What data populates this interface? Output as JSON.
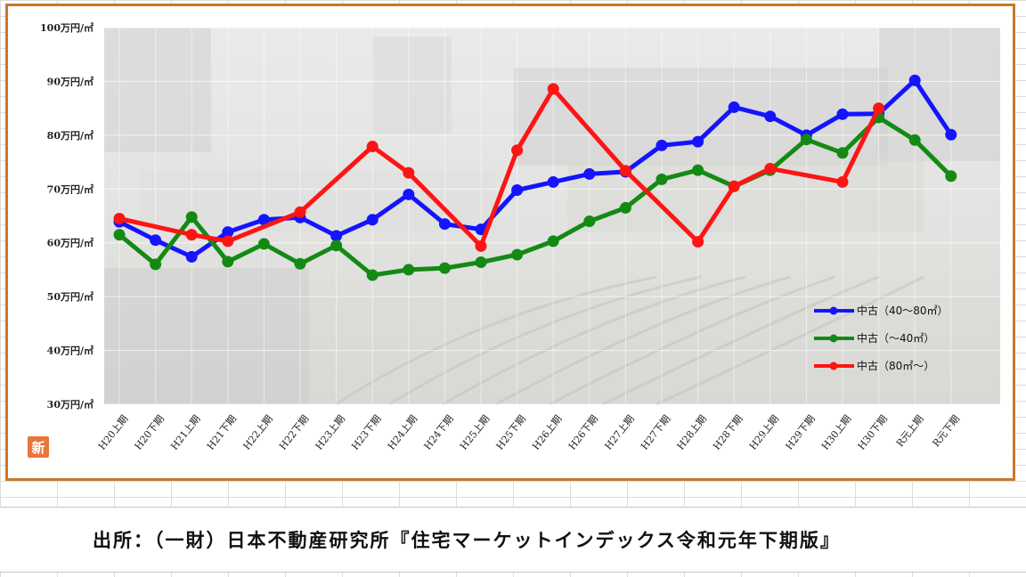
{
  "source_text": "出所：（一財）日本不動産研究所『住宅マーケットインデックス令和元年下期版』",
  "logo_text": "新",
  "chart_data": {
    "type": "line",
    "y_unit_suffix": "万円/㎡",
    "ylim": [
      30,
      100
    ],
    "y_ticks": [
      "30万円/㎡",
      "40万円/㎡",
      "50万円/㎡",
      "60万円/㎡",
      "70万円/㎡",
      "80万円/㎡",
      "90万円/㎡",
      "100万円/㎡"
    ],
    "categories": [
      "H20上期",
      "H20下期",
      "H21上期",
      "H21下期",
      "H22上期",
      "H22下期",
      "H23上期",
      "H23下期",
      "H24上期",
      "H24下期",
      "H25上期",
      "H25下期",
      "H26上期",
      "H26下期",
      "H27上期",
      "H27下期",
      "H28上期",
      "H28下期",
      "H29上期",
      "H29下期",
      "H30上期",
      "H30下期",
      "R元上期",
      "R元下期"
    ],
    "grid": true,
    "legend_position": "bottom-right",
    "series": [
      {
        "name": "中古（40～80㎡）",
        "color": "#1414ff",
        "values": [
          63.9,
          60.5,
          57.4,
          62.0,
          64.3,
          64.7,
          61.3,
          64.3,
          69.0,
          63.5,
          62.5,
          69.8,
          71.3,
          72.8,
          73.2,
          78.1,
          78.8,
          85.2,
          83.5,
          80.0,
          83.9,
          84.0,
          90.2,
          80.1
        ]
      },
      {
        "name": "中古（～40㎡）",
        "color": "#138a13",
        "values": [
          61.5,
          56.0,
          64.8,
          56.5,
          59.8,
          56.1,
          59.5,
          54.0,
          55.0,
          55.3,
          56.4,
          57.8,
          60.3,
          64.0,
          66.5,
          71.8,
          73.5,
          70.5,
          73.5,
          79.2,
          76.7,
          83.3,
          79.1,
          72.4
        ]
      },
      {
        "name": "中古（80㎡～）",
        "color": "#ff1414",
        "values": [
          64.5,
          null,
          61.5,
          60.3,
          null,
          65.7,
          null,
          77.9,
          73.0,
          null,
          59.4,
          77.2,
          88.6,
          null,
          73.4,
          null,
          60.2,
          70.5,
          73.8,
          null,
          71.3,
          85.0,
          null,
          null
        ]
      }
    ]
  }
}
